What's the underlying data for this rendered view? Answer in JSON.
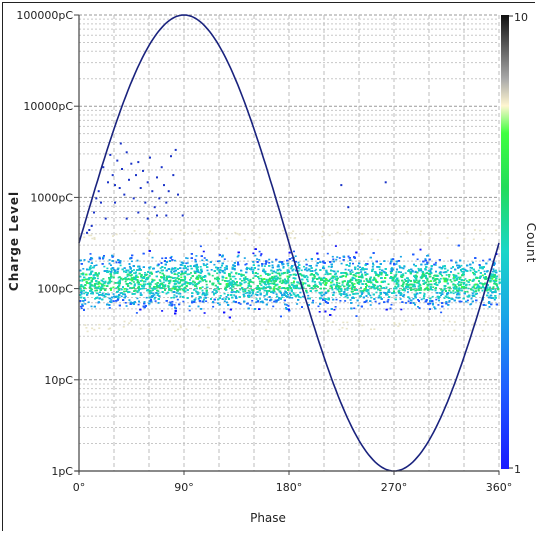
{
  "chart_data": {
    "type": "scatter",
    "title": "",
    "xlabel": "Phase",
    "ylabel": "Charge Level",
    "colorbar_label": "Count",
    "x_ticks": [
      "0°",
      "90°",
      "180°",
      "270°",
      "360°"
    ],
    "x_tick_values": [
      0,
      90,
      180,
      270,
      360
    ],
    "y_ticks": [
      "1pC",
      "10pC",
      "100pC",
      "1000pC",
      "10000pC",
      "100000pC"
    ],
    "y_tick_values": [
      1,
      10,
      100,
      1000,
      10000,
      100000
    ],
    "xlim": [
      0,
      360
    ],
    "ylim": [
      1,
      100000
    ],
    "y_scale": "log",
    "colorbar_ticks": [
      "10",
      "1"
    ],
    "colorbar_range": [
      1,
      10
    ],
    "grid": true,
    "series": [
      {
        "kind": "reference_sine",
        "color": "#1a237e",
        "points": [
          {
            "phase": 0,
            "charge": 316
          },
          {
            "phase": 30,
            "charge": 5623
          },
          {
            "phase": 45,
            "charge": 17783
          },
          {
            "phase": 60,
            "charge": 40000
          },
          {
            "phase": 90,
            "charge": 100000
          },
          {
            "phase": 120,
            "charge": 40000
          },
          {
            "phase": 135,
            "charge": 17783
          },
          {
            "phase": 150,
            "charge": 5623
          },
          {
            "phase": 180,
            "charge": 316
          },
          {
            "phase": 210,
            "charge": 17.8
          },
          {
            "phase": 225,
            "charge": 5.6
          },
          {
            "phase": 240,
            "charge": 2.5
          },
          {
            "phase": 270,
            "charge": 1
          },
          {
            "phase": 300,
            "charge": 2.5
          },
          {
            "phase": 315,
            "charge": 5.6
          },
          {
            "phase": 330,
            "charge": 17.8
          },
          {
            "phase": 360,
            "charge": 316
          }
        ]
      },
      {
        "kind": "density_band",
        "charge_min": 50,
        "charge_max": 350,
        "charge_center": 120,
        "phase_range": [
          0,
          360
        ],
        "colormap": [
          "#1010ff",
          "#1e5bff",
          "#16a4e6",
          "#18d0c8",
          "#22e07a",
          "#40ff40",
          "#7fe07f",
          "#b0b0b0",
          "#000000"
        ]
      },
      {
        "kind": "sparse_high_points",
        "color": "#1a33c8",
        "points": [
          [
            12,
            700
          ],
          [
            16,
            1200
          ],
          [
            18,
            900
          ],
          [
            20,
            2200
          ],
          [
            24,
            1500
          ],
          [
            26,
            3000
          ],
          [
            28,
            1800
          ],
          [
            30,
            900
          ],
          [
            32,
            2600
          ],
          [
            34,
            1300
          ],
          [
            35,
            4000
          ],
          [
            36,
            2100
          ],
          [
            38,
            1100
          ],
          [
            40,
            3200
          ],
          [
            42,
            1600
          ],
          [
            44,
            2400
          ],
          [
            46,
            1000
          ],
          [
            48,
            1800
          ],
          [
            50,
            700
          ],
          [
            52,
            1300
          ],
          [
            54,
            2000
          ],
          [
            56,
            900
          ],
          [
            58,
            1500
          ],
          [
            60,
            2800
          ],
          [
            62,
            1200
          ],
          [
            64,
            800
          ],
          [
            66,
            1700
          ],
          [
            68,
            1000
          ],
          [
            70,
            2200
          ],
          [
            72,
            1400
          ],
          [
            74,
            900
          ],
          [
            76,
            1200
          ],
          [
            78,
            2900
          ],
          [
            80,
            1800
          ],
          [
            82,
            3400
          ],
          [
            84,
            1100
          ],
          [
            22,
            600
          ],
          [
            30,
            1400
          ],
          [
            40,
            600
          ],
          [
            50,
            2500
          ],
          [
            58,
            600
          ],
          [
            66,
            650
          ],
          [
            74,
            650
          ],
          [
            14,
            1000
          ],
          [
            10,
            500
          ],
          [
            8,
            450
          ],
          [
            6,
            420
          ],
          [
            88,
            650
          ],
          [
            224,
            1400
          ],
          [
            230,
            800
          ],
          [
            262,
            1500
          ]
        ]
      }
    ]
  }
}
